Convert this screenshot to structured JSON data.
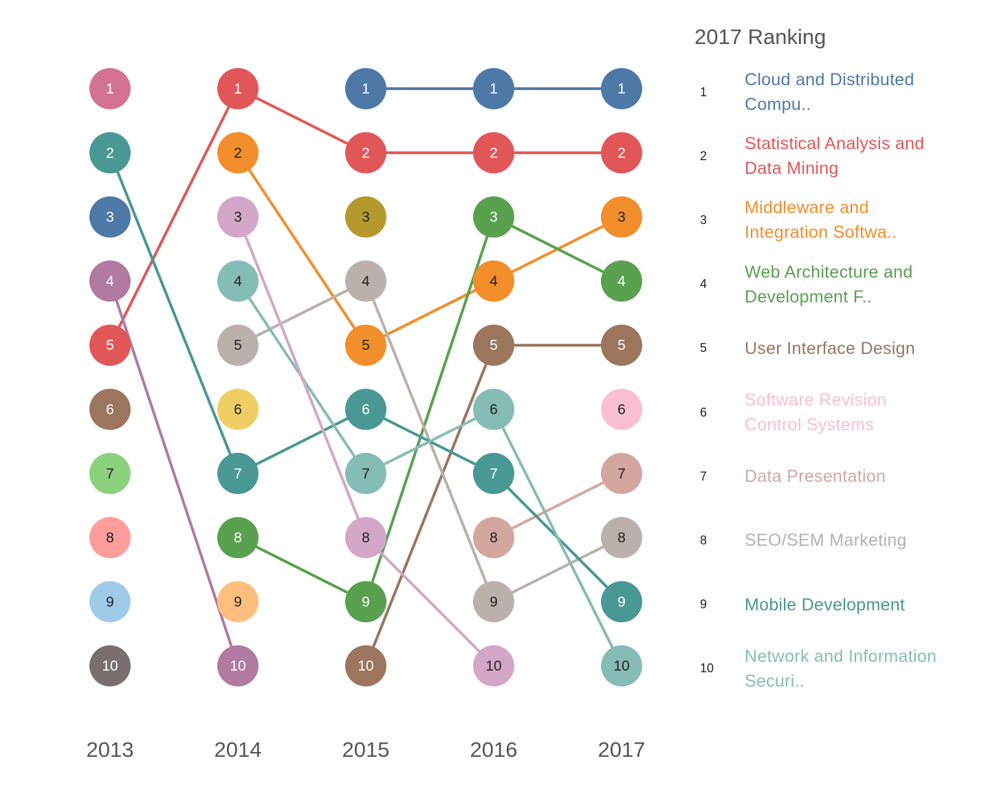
{
  "chart_data": {
    "type": "bump",
    "years": [
      "2013",
      "2014",
      "2015",
      "2016",
      "2017"
    ],
    "legend_title": "2017 Ranking",
    "colors": {
      "Cloud and Distributed Computing": "#4E79A7",
      "Statistical Analysis and Data Mining": "#E15759",
      "Middleware and Integration Software": "#F28E2B",
      "Web Architecture and Development Frameworks": "#59A14F",
      "User Interface Design": "#9C755F",
      "Software Revision Control Systems": "#FABFD2",
      "Data Presentation": "#D4A6A0",
      "SEO/SEM Marketing": "#BAB0AC",
      "Mobile Development": "#499894",
      "Network and Information Security": "#86BCB6",
      "2013 #1": "#D37295",
      "2013 #3": "#4E79A7",
      "2013 #4": "#B07AA1",
      "2013 #6": "#9C755F",
      "2013 #7": "#8CD17D",
      "2013 #8": "#FF9D9A",
      "2013 #9": "#A0CBE8",
      "2013 #10": "#79706E",
      "2014 #4": "#86BCB6",
      "2014 #6": "#F1CE63",
      "2014 #9": "#FFBE7D",
      "2014 #10": "#B07AA1",
      "2015 #3": "#B6992D",
      "2015 #10": "#9C755F",
      "2016 #10": "#D4A6C8",
      "2014 #3": "#D4A6C8",
      "2014 #5": "#BAB0AC",
      "2015 #4": "#BAB0AC",
      "2015 #7": "#86BCB6",
      "2015 #8": "#D4A6C8",
      "2014 #8": "#59A14F",
      "2016 #3": "#59A14F",
      "2014 #7": "#499894",
      "2013 #2": "#499894",
      "2015 #6": "#499894",
      "2016 #7": "#499894",
      "2016 #8": "#D4A6A0",
      "2016 #9": "#BAB0AC",
      "2016 #6": "#86BCB6",
      "2016 #4": "#F28E2B",
      "2016 #5": "#9C755F",
      "2015 #5": "#F28E2B",
      "2014 #2": "#F28E2B",
      "2013 #5": "#E15759",
      "2014 #1": "#E15759",
      "2015 #2": "#E15759",
      "2016 #2": "#E15759",
      "2015 #1": "#4E79A7",
      "2016 #1": "#4E79A7",
      "2015 #9": "#59A14F"
    },
    "nodes": [
      {
        "year": "2013",
        "rank": 1,
        "label": "1",
        "color": "#D37295",
        "text_color": "#ffffff"
      },
      {
        "year": "2013",
        "rank": 2,
        "label": "2",
        "color": "#499894",
        "text_color": "#ffffff"
      },
      {
        "year": "2013",
        "rank": 3,
        "label": "3",
        "color": "#4E79A7",
        "text_color": "#ffffff"
      },
      {
        "year": "2013",
        "rank": 4,
        "label": "4",
        "color": "#B07AA1",
        "text_color": "#ffffff"
      },
      {
        "year": "2013",
        "rank": 5,
        "label": "5",
        "color": "#E15759",
        "text_color": "#ffffff"
      },
      {
        "year": "2013",
        "rank": 6,
        "label": "6",
        "color": "#9C755F",
        "text_color": "#ffffff"
      },
      {
        "year": "2013",
        "rank": 7,
        "label": "7",
        "color": "#8CD17D",
        "text_color": "#222222"
      },
      {
        "year": "2013",
        "rank": 8,
        "label": "8",
        "color": "#FF9D9A",
        "text_color": "#222222"
      },
      {
        "year": "2013",
        "rank": 9,
        "label": "9",
        "color": "#A0CBE8",
        "text_color": "#222222"
      },
      {
        "year": "2013",
        "rank": 10,
        "label": "10",
        "color": "#79706E",
        "text_color": "#ffffff"
      },
      {
        "year": "2014",
        "rank": 1,
        "label": "1",
        "color": "#E15759",
        "text_color": "#ffffff"
      },
      {
        "year": "2014",
        "rank": 2,
        "label": "2",
        "color": "#F28E2B",
        "text_color": "#222222"
      },
      {
        "year": "2014",
        "rank": 3,
        "label": "3",
        "color": "#D4A6C8",
        "text_color": "#222222"
      },
      {
        "year": "2014",
        "rank": 4,
        "label": "4",
        "color": "#86BCB6",
        "text_color": "#222222"
      },
      {
        "year": "2014",
        "rank": 5,
        "label": "5",
        "color": "#BAB0AC",
        "text_color": "#222222"
      },
      {
        "year": "2014",
        "rank": 6,
        "label": "6",
        "color": "#F1CE63",
        "text_color": "#222222"
      },
      {
        "year": "2014",
        "rank": 7,
        "label": "7",
        "color": "#499894",
        "text_color": "#ffffff"
      },
      {
        "year": "2014",
        "rank": 8,
        "label": "8",
        "color": "#59A14F",
        "text_color": "#ffffff"
      },
      {
        "year": "2014",
        "rank": 9,
        "label": "9",
        "color": "#FFBE7D",
        "text_color": "#222222"
      },
      {
        "year": "2014",
        "rank": 10,
        "label": "10",
        "color": "#B07AA1",
        "text_color": "#ffffff"
      },
      {
        "year": "2015",
        "rank": 1,
        "label": "1",
        "color": "#4E79A7",
        "text_color": "#ffffff"
      },
      {
        "year": "2015",
        "rank": 2,
        "label": "2",
        "color": "#E15759",
        "text_color": "#ffffff"
      },
      {
        "year": "2015",
        "rank": 3,
        "label": "3",
        "color": "#B6992D",
        "text_color": "#222222"
      },
      {
        "year": "2015",
        "rank": 4,
        "label": "4",
        "color": "#BAB0AC",
        "text_color": "#222222"
      },
      {
        "year": "2015",
        "rank": 5,
        "label": "5",
        "color": "#F28E2B",
        "text_color": "#222222"
      },
      {
        "year": "2015",
        "rank": 6,
        "label": "6",
        "color": "#499894",
        "text_color": "#ffffff"
      },
      {
        "year": "2015",
        "rank": 7,
        "label": "7",
        "color": "#86BCB6",
        "text_color": "#222222"
      },
      {
        "year": "2015",
        "rank": 8,
        "label": "8",
        "color": "#D4A6C8",
        "text_color": "#222222"
      },
      {
        "year": "2015",
        "rank": 9,
        "label": "9",
        "color": "#59A14F",
        "text_color": "#ffffff"
      },
      {
        "year": "2015",
        "rank": 10,
        "label": "10",
        "color": "#9C755F",
        "text_color": "#ffffff"
      },
      {
        "year": "2016",
        "rank": 1,
        "label": "1",
        "color": "#4E79A7",
        "text_color": "#ffffff"
      },
      {
        "year": "2016",
        "rank": 2,
        "label": "2",
        "color": "#E15759",
        "text_color": "#ffffff"
      },
      {
        "year": "2016",
        "rank": 3,
        "label": "3",
        "color": "#59A14F",
        "text_color": "#ffffff"
      },
      {
        "year": "2016",
        "rank": 4,
        "label": "4",
        "color": "#F28E2B",
        "text_color": "#222222"
      },
      {
        "year": "2016",
        "rank": 5,
        "label": "5",
        "color": "#9C755F",
        "text_color": "#ffffff"
      },
      {
        "year": "2016",
        "rank": 6,
        "label": "6",
        "color": "#86BCB6",
        "text_color": "#222222"
      },
      {
        "year": "2016",
        "rank": 7,
        "label": "7",
        "color": "#499894",
        "text_color": "#ffffff"
      },
      {
        "year": "2016",
        "rank": 8,
        "label": "8",
        "color": "#D4A6A0",
        "text_color": "#222222"
      },
      {
        "year": "2016",
        "rank": 9,
        "label": "9",
        "color": "#BAB0AC",
        "text_color": "#222222"
      },
      {
        "year": "2016",
        "rank": 10,
        "label": "10",
        "color": "#D4A6C8",
        "text_color": "#222222"
      },
      {
        "year": "2017",
        "rank": 1,
        "label": "1",
        "color": "#4E79A7",
        "text_color": "#ffffff"
      },
      {
        "year": "2017",
        "rank": 2,
        "label": "2",
        "color": "#E15759",
        "text_color": "#ffffff"
      },
      {
        "year": "2017",
        "rank": 3,
        "label": "3",
        "color": "#F28E2B",
        "text_color": "#222222"
      },
      {
        "year": "2017",
        "rank": 4,
        "label": "4",
        "color": "#59A14F",
        "text_color": "#ffffff"
      },
      {
        "year": "2017",
        "rank": 5,
        "label": "5",
        "color": "#9C755F",
        "text_color": "#ffffff"
      },
      {
        "year": "2017",
        "rank": 6,
        "label": "6",
        "color": "#FABFD2",
        "text_color": "#222222"
      },
      {
        "year": "2017",
        "rank": 7,
        "label": "7",
        "color": "#D4A6A0",
        "text_color": "#222222"
      },
      {
        "year": "2017",
        "rank": 8,
        "label": "8",
        "color": "#BAB0AC",
        "text_color": "#222222"
      },
      {
        "year": "2017",
        "rank": 9,
        "label": "9",
        "color": "#499894",
        "text_color": "#ffffff"
      },
      {
        "year": "2017",
        "rank": 10,
        "label": "10",
        "color": "#86BCB6",
        "text_color": "#222222"
      }
    ],
    "paths": [
      {
        "color": "#4E79A7",
        "points": [
          [
            "2015",
            1
          ],
          [
            "2016",
            1
          ],
          [
            "2017",
            1
          ]
        ]
      },
      {
        "color": "#E15759",
        "points": [
          [
            "2013",
            5
          ],
          [
            "2014",
            1
          ],
          [
            "2015",
            2
          ],
          [
            "2016",
            2
          ],
          [
            "2017",
            2
          ]
        ]
      },
      {
        "color": "#F28E2B",
        "points": [
          [
            "2014",
            2
          ],
          [
            "2015",
            5
          ],
          [
            "2016",
            4
          ],
          [
            "2017",
            3
          ]
        ]
      },
      {
        "color": "#59A14F",
        "points": [
          [
            "2014",
            8
          ],
          [
            "2015",
            9
          ],
          [
            "2016",
            3
          ],
          [
            "2017",
            4
          ]
        ]
      },
      {
        "color": "#9C755F",
        "points": [
          [
            "2015",
            10
          ],
          [
            "2016",
            5
          ],
          [
            "2017",
            5
          ]
        ]
      },
      {
        "color": "#D4A6A0",
        "points": [
          [
            "2016",
            8
          ],
          [
            "2017",
            7
          ]
        ]
      },
      {
        "color": "#BAB0AC",
        "points": [
          [
            "2014",
            5
          ],
          [
            "2015",
            4
          ],
          [
            "2016",
            9
          ],
          [
            "2017",
            8
          ]
        ]
      },
      {
        "color": "#499894",
        "points": [
          [
            "2013",
            2
          ],
          [
            "2014",
            7
          ],
          [
            "2015",
            6
          ],
          [
            "2016",
            7
          ],
          [
            "2017",
            9
          ]
        ]
      },
      {
        "color": "#86BCB6",
        "points": [
          [
            "2014",
            4
          ],
          [
            "2015",
            7
          ],
          [
            "2016",
            6
          ],
          [
            "2017",
            10
          ]
        ]
      },
      {
        "color": "#D4A6C8",
        "points": [
          [
            "2014",
            3
          ],
          [
            "2015",
            8
          ],
          [
            "2016",
            10
          ]
        ]
      },
      {
        "color": "#B07AA1",
        "points": [
          [
            "2013",
            4
          ],
          [
            "2014",
            10
          ]
        ]
      }
    ],
    "legend": [
      {
        "rank": "1",
        "label": "Cloud and Distributed Compu..",
        "color": "#4E79A7"
      },
      {
        "rank": "2",
        "label": "Statistical Analysis and Data Mining",
        "color": "#E15759"
      },
      {
        "rank": "3",
        "label": "Middleware and Integration Softwa..",
        "color": "#F28E2B"
      },
      {
        "rank": "4",
        "label": "Web Architecture and Development F..",
        "color": "#59A14F"
      },
      {
        "rank": "5",
        "label": "User Interface Design",
        "color": "#9C755F"
      },
      {
        "rank": "6",
        "label": "Software Revision Control Systems",
        "color": "#FABFD2"
      },
      {
        "rank": "7",
        "label": "Data Presentation",
        "color": "#D4A6A0"
      },
      {
        "rank": "8",
        "label": "SEO/SEM Marketing",
        "color": "#BAB0AC"
      },
      {
        "rank": "9",
        "label": "Mobile Development",
        "color": "#499894"
      },
      {
        "rank": "10",
        "label": "Network and Information Securi..",
        "color": "#86BCB6"
      }
    ]
  }
}
